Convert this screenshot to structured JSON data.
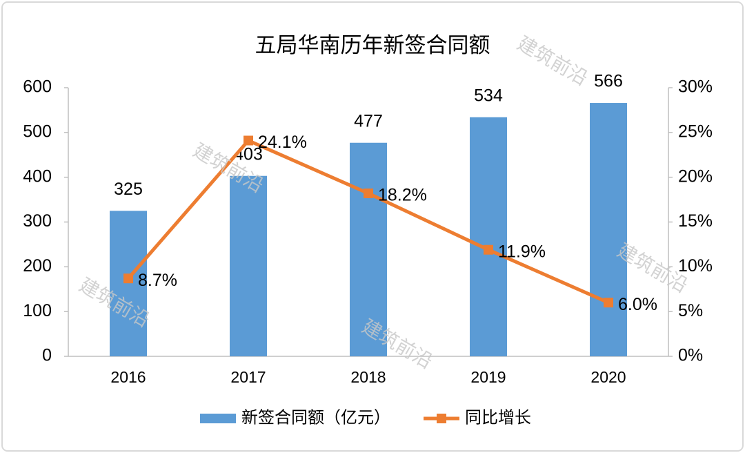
{
  "chart_data": {
    "type": "bar",
    "title": "五局华南历年新签合同额",
    "watermark": "建筑前沿",
    "categories": [
      "2016",
      "2017",
      "2018",
      "2019",
      "2020"
    ],
    "series": [
      {
        "name": "新签合同额（亿元）",
        "type": "bar",
        "color": "#5b9bd5",
        "values": [
          325,
          403,
          477,
          534,
          566
        ]
      },
      {
        "name": "同比增长",
        "type": "line",
        "axis": "y2",
        "color": "#ed7d31",
        "values": [
          8.7,
          24.1,
          18.2,
          11.9,
          6.0
        ],
        "value_labels": [
          "8.7%",
          "24.1%",
          "18.2%",
          "11.9%",
          "6.0%"
        ]
      }
    ],
    "ylim": [
      0,
      600
    ],
    "yticks": [
      0,
      100,
      200,
      300,
      400,
      500,
      600
    ],
    "y2lim": [
      0,
      30
    ],
    "y2ticks": [
      {
        "value": 0,
        "label": "0%"
      },
      {
        "value": 5,
        "label": "5%"
      },
      {
        "value": 10,
        "label": "10%"
      },
      {
        "value": 15,
        "label": "15%"
      },
      {
        "value": 20,
        "label": "20%"
      },
      {
        "value": 25,
        "label": "25%"
      },
      {
        "value": 30,
        "label": "30%"
      }
    ],
    "legend": "bottom"
  }
}
